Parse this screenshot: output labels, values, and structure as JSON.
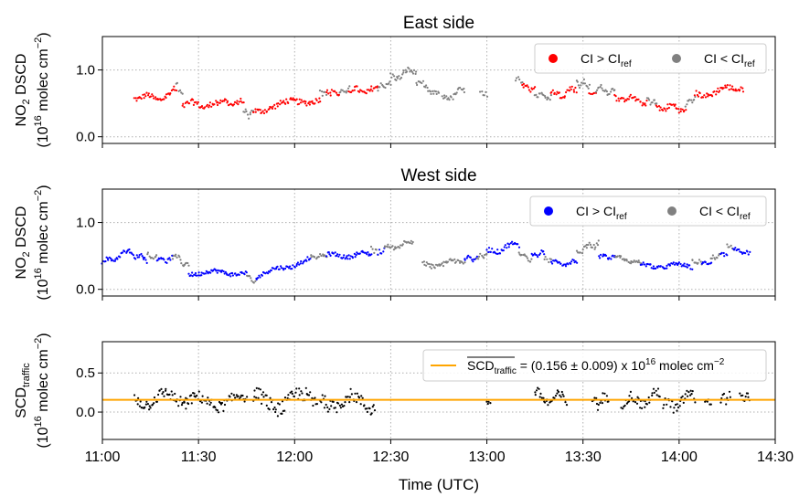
{
  "figure": {
    "xlabel": "Time (UTC)"
  },
  "chart_data": [
    {
      "type": "scatter",
      "title": "East side",
      "ylabel_main": "NO",
      "ylabel_sub": "2",
      "ylabel_rest": " DSCD",
      "yunit_pre": "(10",
      "yunit_exp": "16",
      "yunit_mid": " molec cm",
      "yunit_exp2": "−2",
      "yunit_post": ")",
      "xlim": [
        "11:00",
        "14:30"
      ],
      "ylim": [
        -0.1,
        1.5
      ],
      "yticks": [
        0.0,
        1.0
      ],
      "ytick_labels": [
        "0.0",
        "1.0"
      ],
      "grid": true,
      "legend_position": "top-right",
      "colors": {
        "above": "#ff0000",
        "below": "#808080"
      },
      "legend": [
        {
          "color": "#ff0000",
          "text": "CI > CI",
          "sub": "ref"
        },
        {
          "color": "#808080",
          "text": "CI < CI",
          "sub": "ref"
        }
      ],
      "segments": [
        {
          "start": "11:10",
          "end": "11:20",
          "y0": 0.6,
          "y1": 0.58,
          "amp": 0.06,
          "color": "#ff0000"
        },
        {
          "start": "11:20",
          "end": "11:23",
          "y0": 0.62,
          "y1": 0.72,
          "amp": 0.06,
          "color": "#ff0000"
        },
        {
          "start": "11:23",
          "end": "11:25",
          "y0": 0.78,
          "y1": 0.62,
          "amp": 0.06,
          "color": "#808080"
        },
        {
          "start": "11:25",
          "end": "11:36",
          "y0": 0.48,
          "y1": 0.48,
          "amp": 0.07,
          "color": "#ff0000"
        },
        {
          "start": "11:36",
          "end": "11:44",
          "y0": 0.52,
          "y1": 0.5,
          "amp": 0.06,
          "color": "#ff0000"
        },
        {
          "start": "11:44",
          "end": "11:47",
          "y0": 0.35,
          "y1": 0.33,
          "amp": 0.06,
          "color": "#808080"
        },
        {
          "start": "11:47",
          "end": "12:08",
          "y0": 0.4,
          "y1": 0.58,
          "amp": 0.07,
          "color": "#ff0000"
        },
        {
          "start": "12:08",
          "end": "12:10",
          "y0": 0.65,
          "y1": 0.65,
          "amp": 0.06,
          "color": "#808080"
        },
        {
          "start": "12:10",
          "end": "12:14",
          "y0": 0.68,
          "y1": 0.65,
          "amp": 0.06,
          "color": "#ff0000"
        },
        {
          "start": "12:14",
          "end": "12:17",
          "y0": 0.66,
          "y1": 0.7,
          "amp": 0.05,
          "color": "#808080"
        },
        {
          "start": "12:17",
          "end": "12:26",
          "y0": 0.68,
          "y1": 0.7,
          "amp": 0.07,
          "color": "#ff0000"
        },
        {
          "start": "12:26",
          "end": "12:30",
          "y0": 0.72,
          "y1": 0.8,
          "amp": 0.06,
          "color": "#808080"
        },
        {
          "start": "12:30",
          "end": "12:38",
          "y0": 0.88,
          "y1": 1.0,
          "amp": 0.07,
          "color": "#808080"
        },
        {
          "start": "12:38",
          "end": "12:45",
          "y0": 0.82,
          "y1": 0.62,
          "amp": 0.06,
          "color": "#808080"
        },
        {
          "start": "12:46",
          "end": "12:53",
          "y0": 0.55,
          "y1": 0.7,
          "amp": 0.06,
          "color": "#808080"
        },
        {
          "start": "12:58",
          "end": "13:00",
          "y0": 0.68,
          "y1": 0.62,
          "amp": 0.05,
          "color": "#808080"
        },
        {
          "start": "13:09",
          "end": "13:11",
          "y0": 0.88,
          "y1": 0.8,
          "amp": 0.05,
          "color": "#808080"
        },
        {
          "start": "13:11",
          "end": "13:15",
          "y0": 0.78,
          "y1": 0.7,
          "amp": 0.06,
          "color": "#ff0000"
        },
        {
          "start": "13:15",
          "end": "13:20",
          "y0": 0.65,
          "y1": 0.6,
          "amp": 0.06,
          "color": "#808080"
        },
        {
          "start": "13:20",
          "end": "13:28",
          "y0": 0.62,
          "y1": 0.7,
          "amp": 0.07,
          "color": "#ff0000"
        },
        {
          "start": "13:28",
          "end": "13:32",
          "y0": 0.8,
          "y1": 0.78,
          "amp": 0.06,
          "color": "#808080"
        },
        {
          "start": "13:32",
          "end": "13:34",
          "y0": 0.65,
          "y1": 0.65,
          "amp": 0.05,
          "color": "#ff0000"
        },
        {
          "start": "13:34",
          "end": "13:40",
          "y0": 0.72,
          "y1": 0.68,
          "amp": 0.06,
          "color": "#808080"
        },
        {
          "start": "13:40",
          "end": "13:50",
          "y0": 0.6,
          "y1": 0.52,
          "amp": 0.06,
          "color": "#ff0000"
        },
        {
          "start": "13:50",
          "end": "13:53",
          "y0": 0.55,
          "y1": 0.5,
          "amp": 0.05,
          "color": "#808080"
        },
        {
          "start": "13:53",
          "end": "14:02",
          "y0": 0.45,
          "y1": 0.42,
          "amp": 0.07,
          "color": "#ff0000"
        },
        {
          "start": "14:02",
          "end": "14:05",
          "y0": 0.5,
          "y1": 0.6,
          "amp": 0.05,
          "color": "#808080"
        },
        {
          "start": "14:05",
          "end": "14:20",
          "y0": 0.62,
          "y1": 0.75,
          "amp": 0.07,
          "color": "#ff0000"
        }
      ]
    },
    {
      "type": "scatter",
      "title": "West side",
      "ylabel_main": "NO",
      "ylabel_sub": "2",
      "ylabel_rest": " DSCD",
      "yunit_pre": "(10",
      "yunit_exp": "16",
      "yunit_mid": " molec cm",
      "yunit_exp2": "−2",
      "yunit_post": ")",
      "xlim": [
        "11:00",
        "14:30"
      ],
      "ylim": [
        -0.1,
        1.5
      ],
      "yticks": [
        0.0,
        1.0
      ],
      "ytick_labels": [
        "0.0",
        "1.0"
      ],
      "grid": true,
      "legend_position": "top-right",
      "colors": {
        "above": "#0000ff",
        "below": "#808080"
      },
      "legend": [
        {
          "color": "#0000ff",
          "text": "CI > CI",
          "sub": "ref"
        },
        {
          "color": "#808080",
          "text": "CI < CI",
          "sub": "ref"
        }
      ],
      "segments": [
        {
          "start": "11:00",
          "end": "11:08",
          "y0": 0.4,
          "y1": 0.55,
          "amp": 0.05,
          "color": "#0000ff"
        },
        {
          "start": "11:08",
          "end": "11:14",
          "y0": 0.55,
          "y1": 0.45,
          "amp": 0.05,
          "color": "#0000ff"
        },
        {
          "start": "11:14",
          "end": "11:17",
          "y0": 0.5,
          "y1": 0.48,
          "amp": 0.05,
          "color": "#808080"
        },
        {
          "start": "11:17",
          "end": "11:22",
          "y0": 0.45,
          "y1": 0.45,
          "amp": 0.05,
          "color": "#0000ff"
        },
        {
          "start": "11:22",
          "end": "11:27",
          "y0": 0.5,
          "y1": 0.35,
          "amp": 0.05,
          "color": "#808080"
        },
        {
          "start": "11:27",
          "end": "11:45",
          "y0": 0.25,
          "y1": 0.25,
          "amp": 0.05,
          "color": "#0000ff"
        },
        {
          "start": "11:45",
          "end": "11:48",
          "y0": 0.2,
          "y1": 0.1,
          "amp": 0.05,
          "color": "#808080"
        },
        {
          "start": "11:48",
          "end": "12:05",
          "y0": 0.2,
          "y1": 0.45,
          "amp": 0.05,
          "color": "#0000ff"
        },
        {
          "start": "12:05",
          "end": "12:10",
          "y0": 0.48,
          "y1": 0.5,
          "amp": 0.04,
          "color": "#808080"
        },
        {
          "start": "12:10",
          "end": "12:24",
          "y0": 0.5,
          "y1": 0.52,
          "amp": 0.05,
          "color": "#0000ff"
        },
        {
          "start": "12:24",
          "end": "12:26",
          "y0": 0.6,
          "y1": 0.55,
          "amp": 0.04,
          "color": "#808080"
        },
        {
          "start": "12:26",
          "end": "12:28",
          "y0": 0.55,
          "y1": 0.58,
          "amp": 0.04,
          "color": "#0000ff"
        },
        {
          "start": "12:28",
          "end": "12:37",
          "y0": 0.6,
          "y1": 0.72,
          "amp": 0.05,
          "color": "#808080"
        },
        {
          "start": "12:40",
          "end": "12:53",
          "y0": 0.35,
          "y1": 0.42,
          "amp": 0.06,
          "color": "#808080"
        },
        {
          "start": "12:53",
          "end": "12:57",
          "y0": 0.48,
          "y1": 0.45,
          "amp": 0.04,
          "color": "#0000ff"
        },
        {
          "start": "12:57",
          "end": "13:00",
          "y0": 0.48,
          "y1": 0.52,
          "amp": 0.04,
          "color": "#808080"
        },
        {
          "start": "13:00",
          "end": "13:10",
          "y0": 0.55,
          "y1": 0.68,
          "amp": 0.06,
          "color": "#0000ff"
        },
        {
          "start": "13:10",
          "end": "13:14",
          "y0": 0.55,
          "y1": 0.45,
          "amp": 0.05,
          "color": "#808080"
        },
        {
          "start": "13:14",
          "end": "13:18",
          "y0": 0.5,
          "y1": 0.55,
          "amp": 0.04,
          "color": "#0000ff"
        },
        {
          "start": "13:18",
          "end": "13:20",
          "y0": 0.45,
          "y1": 0.45,
          "amp": 0.04,
          "color": "#808080"
        },
        {
          "start": "13:20",
          "end": "13:28",
          "y0": 0.4,
          "y1": 0.4,
          "amp": 0.05,
          "color": "#0000ff"
        },
        {
          "start": "13:28",
          "end": "13:35",
          "y0": 0.55,
          "y1": 0.7,
          "amp": 0.06,
          "color": "#808080"
        },
        {
          "start": "13:35",
          "end": "13:40",
          "y0": 0.5,
          "y1": 0.48,
          "amp": 0.04,
          "color": "#0000ff"
        },
        {
          "start": "13:40",
          "end": "13:48",
          "y0": 0.48,
          "y1": 0.38,
          "amp": 0.04,
          "color": "#808080"
        },
        {
          "start": "13:48",
          "end": "14:04",
          "y0": 0.35,
          "y1": 0.35,
          "amp": 0.05,
          "color": "#0000ff"
        },
        {
          "start": "14:04",
          "end": "14:07",
          "y0": 0.4,
          "y1": 0.4,
          "amp": 0.04,
          "color": "#808080"
        },
        {
          "start": "14:07",
          "end": "14:10",
          "y0": 0.4,
          "y1": 0.38,
          "amp": 0.04,
          "color": "#0000ff"
        },
        {
          "start": "14:10",
          "end": "14:13",
          "y0": 0.45,
          "y1": 0.5,
          "amp": 0.04,
          "color": "#808080"
        },
        {
          "start": "14:13",
          "end": "14:15",
          "y0": 0.55,
          "y1": 0.5,
          "amp": 0.04,
          "color": "#0000ff"
        },
        {
          "start": "14:15",
          "end": "14:17",
          "y0": 0.65,
          "y1": 0.6,
          "amp": 0.04,
          "color": "#808080"
        },
        {
          "start": "14:17",
          "end": "14:22",
          "y0": 0.58,
          "y1": 0.52,
          "amp": 0.05,
          "color": "#0000ff"
        }
      ]
    },
    {
      "type": "scatter",
      "title": "",
      "ylabel_main": "SCD",
      "ylabel_sub": "traffic",
      "ylabel_rest": "",
      "yunit_pre": "(10",
      "yunit_exp": "16",
      "yunit_mid": " molec cm",
      "yunit_exp2": "−2",
      "yunit_post": ")",
      "xlim": [
        "11:00",
        "14:30"
      ],
      "ylim": [
        -0.35,
        0.9
      ],
      "yticks": [
        0.0,
        0.5
      ],
      "ytick_labels": [
        "0.0",
        "0.5"
      ],
      "grid": true,
      "legend_position": "top-right",
      "point_color": "#000000",
      "line_color": "#ffa500",
      "hline": 0.156,
      "legend": [
        {
          "color": "#ffa500",
          "text": "SCD",
          "sub": "traffic",
          "rest": " = (0.156 ± 0.009) x 10",
          "sup": "16",
          "rest2": " molec cm",
          "sup2": "−2"
        }
      ],
      "segments": [
        {
          "start": "11:10",
          "end": "11:26",
          "y0": 0.15,
          "y1": 0.2,
          "amp": 0.12,
          "color": "#000000"
        },
        {
          "start": "11:26",
          "end": "11:45",
          "y0": 0.12,
          "y1": 0.15,
          "amp": 0.12,
          "color": "#000000"
        },
        {
          "start": "11:47",
          "end": "12:07",
          "y0": 0.13,
          "y1": 0.15,
          "amp": 0.16,
          "color": "#000000"
        },
        {
          "start": "12:08",
          "end": "12:25",
          "y0": 0.15,
          "y1": 0.12,
          "amp": 0.14,
          "color": "#000000"
        },
        {
          "start": "13:00",
          "end": "13:01",
          "y0": 0.12,
          "y1": 0.12,
          "amp": 0.02,
          "color": "#000000"
        },
        {
          "start": "13:15",
          "end": "13:25",
          "y0": 0.2,
          "y1": 0.15,
          "amp": 0.1,
          "color": "#000000"
        },
        {
          "start": "13:33",
          "end": "13:38",
          "y0": 0.12,
          "y1": 0.15,
          "amp": 0.1,
          "color": "#000000"
        },
        {
          "start": "13:42",
          "end": "13:54",
          "y0": 0.12,
          "y1": 0.2,
          "amp": 0.11,
          "color": "#000000"
        },
        {
          "start": "13:55",
          "end": "14:05",
          "y0": 0.05,
          "y1": 0.2,
          "amp": 0.12,
          "color": "#000000"
        },
        {
          "start": "14:08",
          "end": "14:10",
          "y0": 0.15,
          "y1": 0.15,
          "amp": 0.06,
          "color": "#000000"
        },
        {
          "start": "14:13",
          "end": "14:16",
          "y0": 0.18,
          "y1": 0.18,
          "amp": 0.07,
          "color": "#000000"
        },
        {
          "start": "14:19",
          "end": "14:22",
          "y0": 0.2,
          "y1": 0.18,
          "amp": 0.07,
          "color": "#000000"
        }
      ]
    }
  ],
  "xaxis": {
    "ticks": [
      "11:00",
      "11:30",
      "12:00",
      "12:30",
      "13:00",
      "13:30",
      "14:00",
      "14:30"
    ]
  }
}
